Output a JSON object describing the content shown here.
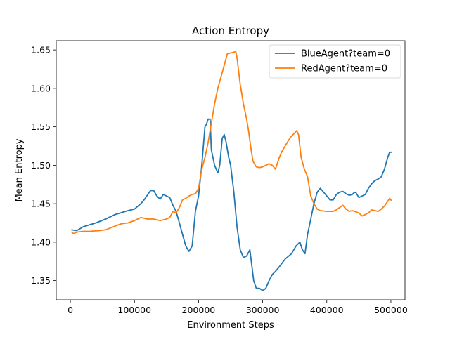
{
  "chart_data": {
    "type": "line",
    "title": "Action Entropy",
    "xlabel": "Environment Steps",
    "ylabel": "Mean Entropy",
    "xlim": [
      -22000,
      522000
    ],
    "ylim": [
      1.325,
      1.662
    ],
    "xticks": [
      0,
      100000,
      200000,
      300000,
      400000,
      500000
    ],
    "yticks": [
      1.35,
      1.4,
      1.45,
      1.5,
      1.55,
      1.6,
      1.65
    ],
    "grid": false,
    "legend_position": "top-right",
    "series": [
      {
        "name": "BlueAgent?team=0",
        "color": "#1f77b4",
        "x": [
          2000,
          10000,
          20000,
          40000,
          55000,
          70000,
          90000,
          100000,
          110000,
          115000,
          125000,
          130000,
          135000,
          140000,
          145000,
          150000,
          155000,
          160000,
          165000,
          170000,
          175000,
          180000,
          185000,
          190000,
          195000,
          200000,
          205000,
          210000,
          212000,
          215000,
          218000,
          220000,
          225000,
          230000,
          233000,
          237000,
          240000,
          243000,
          247000,
          250000,
          255000,
          260000,
          265000,
          270000,
          275000,
          280000,
          283000,
          286000,
          290000,
          295000,
          300000,
          305000,
          310000,
          315000,
          320000,
          325000,
          335000,
          345000,
          352000,
          358000,
          362000,
          366000,
          370000,
          375000,
          380000,
          385000,
          390000,
          395000,
          400000,
          405000,
          410000,
          415000,
          420000,
          425000,
          430000,
          435000,
          440000,
          442000,
          445000,
          450000,
          455000,
          460000,
          465000,
          470000,
          475000,
          480000,
          485000,
          490000,
          495000,
          498000,
          501000
        ],
        "values": [
          1.416,
          1.415,
          1.42,
          1.425,
          1.43,
          1.436,
          1.441,
          1.443,
          1.45,
          1.455,
          1.467,
          1.467,
          1.46,
          1.456,
          1.462,
          1.46,
          1.458,
          1.448,
          1.44,
          1.425,
          1.41,
          1.395,
          1.388,
          1.395,
          1.44,
          1.46,
          1.5,
          1.55,
          1.553,
          1.56,
          1.56,
          1.52,
          1.5,
          1.49,
          1.5,
          1.535,
          1.54,
          1.53,
          1.51,
          1.5,
          1.465,
          1.42,
          1.39,
          1.38,
          1.382,
          1.39,
          1.37,
          1.35,
          1.34,
          1.34,
          1.337,
          1.34,
          1.35,
          1.358,
          1.362,
          1.367,
          1.378,
          1.385,
          1.395,
          1.4,
          1.39,
          1.385,
          1.41,
          1.43,
          1.45,
          1.465,
          1.47,
          1.465,
          1.46,
          1.455,
          1.455,
          1.462,
          1.465,
          1.466,
          1.463,
          1.461,
          1.462,
          1.464,
          1.465,
          1.458,
          1.46,
          1.462,
          1.47,
          1.476,
          1.48,
          1.482,
          1.485,
          1.495,
          1.51,
          1.517,
          1.517
        ]
      },
      {
        "name": "RedAgent?team=0",
        "color": "#ff7f0e",
        "x": [
          2000,
          5000,
          10000,
          20000,
          30000,
          45000,
          55000,
          70000,
          80000,
          90000,
          100000,
          110000,
          120000,
          130000,
          140000,
          150000,
          155000,
          160000,
          165000,
          170000,
          175000,
          180000,
          185000,
          190000,
          195000,
          200000,
          205000,
          210000,
          215000,
          220000,
          225000,
          230000,
          235000,
          240000,
          245000,
          250000,
          255000,
          258000,
          260000,
          265000,
          270000,
          275000,
          278000,
          282000,
          285000,
          290000,
          295000,
          300000,
          305000,
          310000,
          315000,
          320000,
          325000,
          330000,
          335000,
          340000,
          345000,
          350000,
          353000,
          356000,
          360000,
          365000,
          370000,
          375000,
          380000,
          385000,
          390000,
          400000,
          410000,
          415000,
          420000,
          425000,
          430000,
          435000,
          440000,
          450000,
          455000,
          460000,
          465000,
          470000,
          480000,
          485000,
          490000,
          495000,
          498000,
          501000
        ],
        "values": [
          1.413,
          1.411,
          1.413,
          1.414,
          1.414,
          1.415,
          1.416,
          1.421,
          1.424,
          1.425,
          1.428,
          1.432,
          1.43,
          1.43,
          1.428,
          1.43,
          1.432,
          1.44,
          1.438,
          1.445,
          1.455,
          1.457,
          1.46,
          1.462,
          1.463,
          1.47,
          1.495,
          1.51,
          1.53,
          1.555,
          1.58,
          1.6,
          1.615,
          1.63,
          1.645,
          1.646,
          1.647,
          1.648,
          1.64,
          1.605,
          1.58,
          1.56,
          1.545,
          1.52,
          1.505,
          1.498,
          1.497,
          1.498,
          1.5,
          1.502,
          1.5,
          1.495,
          1.508,
          1.518,
          1.525,
          1.532,
          1.538,
          1.542,
          1.545,
          1.54,
          1.51,
          1.495,
          1.485,
          1.46,
          1.45,
          1.443,
          1.441,
          1.44,
          1.44,
          1.442,
          1.445,
          1.448,
          1.443,
          1.44,
          1.441,
          1.438,
          1.434,
          1.436,
          1.438,
          1.442,
          1.44,
          1.443,
          1.447,
          1.453,
          1.457,
          1.454
        ]
      }
    ]
  }
}
